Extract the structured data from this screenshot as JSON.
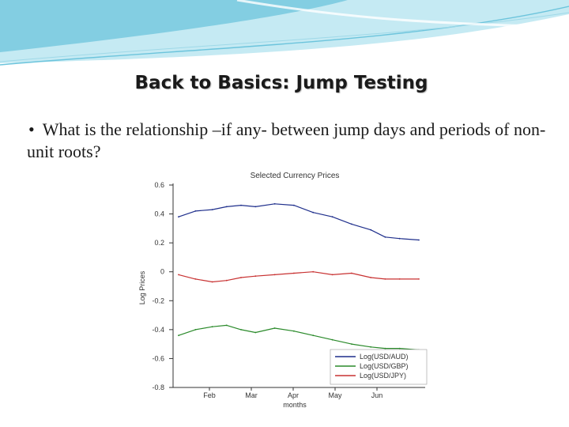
{
  "slide": {
    "title": "Back to Basics: Jump Testing",
    "bullet_symbol": "•",
    "bullet_text": "What is the relationship –if any- between jump days and periods of non-unit roots?"
  },
  "colors": {
    "banner_light": "#bfe8f2",
    "banner_dark": "#6cc4dc",
    "aud": "#1f2f8c",
    "gbp": "#2a8a2a",
    "jpy": "#c83232"
  },
  "chart_data": {
    "type": "line",
    "title": "Selected Currency Prices",
    "xlabel": "months",
    "ylabel": "Log Prices",
    "x_ticks": [
      "Feb",
      "Mar",
      "Apr",
      "May",
      "Jun"
    ],
    "y_ticks": [
      "0.6",
      "0.4",
      "0.2",
      "0",
      "-0.2",
      "-0.4",
      "-0.6",
      "-0.8"
    ],
    "ylim": [
      -0.8,
      0.6
    ],
    "legend_position": "bottom-right",
    "grid": false,
    "series": [
      {
        "name": "Log(USD/AUD)",
        "color": "#1f2f8c",
        "x": [
          0,
          0.07,
          0.14,
          0.2,
          0.26,
          0.32,
          0.4,
          0.48,
          0.56,
          0.64,
          0.72,
          0.8,
          0.86,
          0.92,
          1.0
        ],
        "y": [
          0.38,
          0.42,
          0.43,
          0.45,
          0.46,
          0.45,
          0.47,
          0.46,
          0.41,
          0.38,
          0.33,
          0.29,
          0.24,
          0.23,
          0.22
        ]
      },
      {
        "name": "Log(USD/GBP)",
        "color": "#2a8a2a",
        "x": [
          0,
          0.07,
          0.14,
          0.2,
          0.26,
          0.32,
          0.4,
          0.48,
          0.56,
          0.64,
          0.72,
          0.8,
          0.86,
          0.92,
          1.0
        ],
        "y": [
          -0.44,
          -0.4,
          -0.38,
          -0.37,
          -0.4,
          -0.42,
          -0.39,
          -0.41,
          -0.44,
          -0.47,
          -0.5,
          -0.52,
          -0.53,
          -0.53,
          -0.54
        ]
      },
      {
        "name": "Log(USD/JPY)",
        "color": "#c83232",
        "x": [
          0,
          0.07,
          0.14,
          0.2,
          0.26,
          0.32,
          0.4,
          0.48,
          0.56,
          0.64,
          0.72,
          0.8,
          0.86,
          0.92,
          1.0
        ],
        "y": [
          -0.02,
          -0.05,
          -0.07,
          -0.06,
          -0.04,
          -0.03,
          -0.02,
          -0.01,
          0.0,
          -0.02,
          -0.01,
          -0.04,
          -0.05,
          -0.05,
          -0.05
        ]
      }
    ]
  }
}
